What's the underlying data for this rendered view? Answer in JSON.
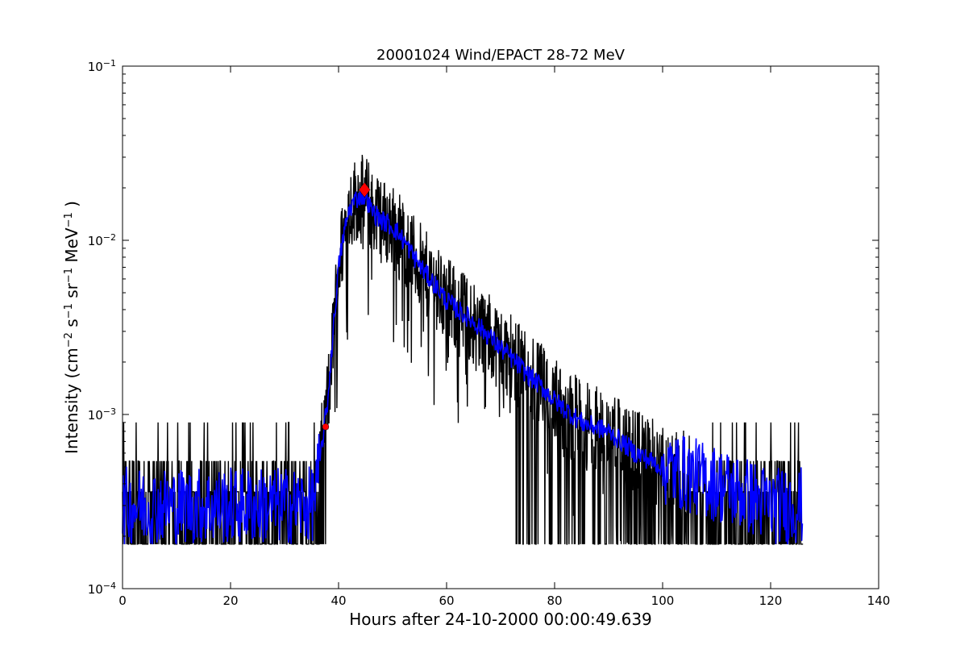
{
  "chart_data": {
    "type": "line",
    "title": "20001024 Wind/EPACT 28-72 MeV",
    "xlabel": "Hours after 24-10-2000 00:00:49.639",
    "ylabel_main": "Intensity (cm",
    "ylabel_parts": [
      {
        "text": "Intensity (cm",
        "sup": false
      },
      {
        "text": "−2",
        "sup": true
      },
      {
        "text": " s",
        "sup": false
      },
      {
        "text": "−1",
        "sup": true
      },
      {
        "text": " sr",
        "sup": false
      },
      {
        "text": "−1",
        "sup": true
      },
      {
        "text": " MeV",
        "sup": false
      },
      {
        "text": "−1",
        "sup": true
      },
      {
        "text": " )",
        "sup": false
      }
    ],
    "xlim": [
      0,
      140
    ],
    "ylim": [
      0.0001,
      0.1
    ],
    "yscale": "log",
    "grid": false,
    "x_ticks": [
      0,
      20,
      40,
      60,
      80,
      100,
      120,
      140
    ],
    "x_tick_labels": [
      "0",
      "20",
      "40",
      "60",
      "80",
      "100",
      "120",
      "140"
    ],
    "y_ticks": [
      0.0001,
      0.001,
      0.01,
      0.1
    ],
    "y_tick_labels": [
      {
        "base": "10",
        "exp": "−4"
      },
      {
        "base": "10",
        "exp": "−3"
      },
      {
        "base": "10",
        "exp": "−2"
      },
      {
        "base": "10",
        "exp": "−1"
      }
    ],
    "series": [
      {
        "color": "#000000",
        "style": "raw noisy intensity",
        "x": [
          0,
          5,
          10,
          15,
          20,
          25,
          30,
          35,
          36,
          37,
          38,
          39,
          40,
          41,
          42,
          43,
          44,
          45,
          46,
          48,
          50,
          52,
          54,
          56,
          58,
          60,
          62,
          64,
          66,
          68,
          70,
          72,
          75,
          78,
          80,
          85,
          90,
          95,
          100,
          105,
          110,
          115,
          120,
          125,
          126
        ],
        "y": [
          0.0003,
          0.0003,
          0.0003,
          0.0003,
          0.0003,
          0.0003,
          0.0003,
          0.0003,
          0.0004,
          0.0007,
          0.0012,
          0.003,
          0.007,
          0.011,
          0.015,
          0.017,
          0.018,
          0.018,
          0.015,
          0.013,
          0.012,
          0.01,
          0.008,
          0.0065,
          0.0055,
          0.0045,
          0.004,
          0.0036,
          0.0032,
          0.0028,
          0.0024,
          0.0021,
          0.0017,
          0.0014,
          0.0012,
          0.0009,
          0.0008,
          0.0006,
          0.0005,
          0.00045,
          0.0004,
          0.00035,
          0.0003,
          0.0003,
          0.0003
        ],
        "noise_floor": 0.00018,
        "noise_spikes": 0.00054
      },
      {
        "color": "#0000ff",
        "style": "smoothed intensity",
        "x": [
          0,
          5,
          10,
          15,
          20,
          25,
          30,
          35,
          36,
          37,
          38,
          39,
          40,
          41,
          42,
          43,
          44,
          45,
          46,
          48,
          50,
          52,
          54,
          56,
          58,
          60,
          62,
          64,
          66,
          68,
          70,
          72,
          75,
          78,
          80,
          85,
          90,
          95,
          100,
          105,
          110,
          115,
          120,
          125,
          126
        ],
        "y": [
          0.0003,
          0.0003,
          0.0003,
          0.0003,
          0.0003,
          0.0003,
          0.0003,
          0.0003,
          0.0004,
          0.0007,
          0.0012,
          0.003,
          0.007,
          0.011,
          0.015,
          0.017,
          0.018,
          0.018,
          0.015,
          0.013,
          0.012,
          0.01,
          0.008,
          0.0065,
          0.0055,
          0.0045,
          0.004,
          0.0036,
          0.0032,
          0.0028,
          0.0024,
          0.0021,
          0.0017,
          0.0014,
          0.0012,
          0.0009,
          0.0008,
          0.0006,
          0.0005,
          0.00045,
          0.0004,
          0.00035,
          0.0003,
          0.0003,
          0.0003
        ]
      }
    ],
    "markers": [
      {
        "shape": "circle",
        "color": "#ff0000",
        "x": 37.6,
        "y": 0.00085
      },
      {
        "shape": "diamond",
        "color": "#ff0000",
        "x": 44.8,
        "y": 0.0195
      }
    ]
  }
}
